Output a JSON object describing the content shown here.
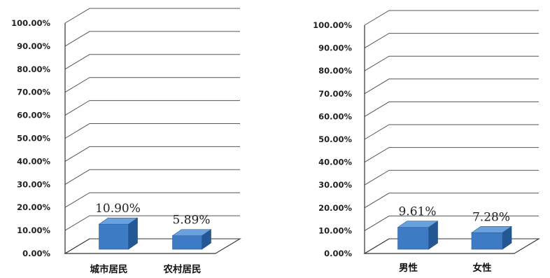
{
  "chart_data": [
    {
      "type": "bar",
      "categories": [
        "城市居民",
        "农村居民"
      ],
      "values": [
        10.9,
        5.89
      ],
      "data_labels": [
        "10.90%",
        "5.89%"
      ],
      "ylim": [
        0,
        100
      ],
      "yticks": [
        "0.00%",
        "10.00%",
        "20.00%",
        "30.00%",
        "40.00%",
        "50.00%",
        "60.00%",
        "70.00%",
        "80.00%",
        "90.00%",
        "100.00%"
      ],
      "grid": true,
      "style": "3d-column",
      "colors": {
        "front": "#3d7cc4",
        "top": "#6aa0dc",
        "side": "#245894"
      }
    },
    {
      "type": "bar",
      "categories": [
        "男性",
        "女性"
      ],
      "values": [
        9.61,
        7.28
      ],
      "data_labels": [
        "9.61%",
        "7.28%"
      ],
      "ylim": [
        0,
        100
      ],
      "yticks": [
        "0.00%",
        "10.00%",
        "20.00%",
        "30.00%",
        "40.00%",
        "50.00%",
        "60.00%",
        "70.00%",
        "80.00%",
        "90.00%",
        "100.00%"
      ],
      "grid": true,
      "style": "3d-column",
      "colors": {
        "front": "#3d7cc4",
        "top": "#6aa0dc",
        "side": "#245894"
      }
    }
  ]
}
